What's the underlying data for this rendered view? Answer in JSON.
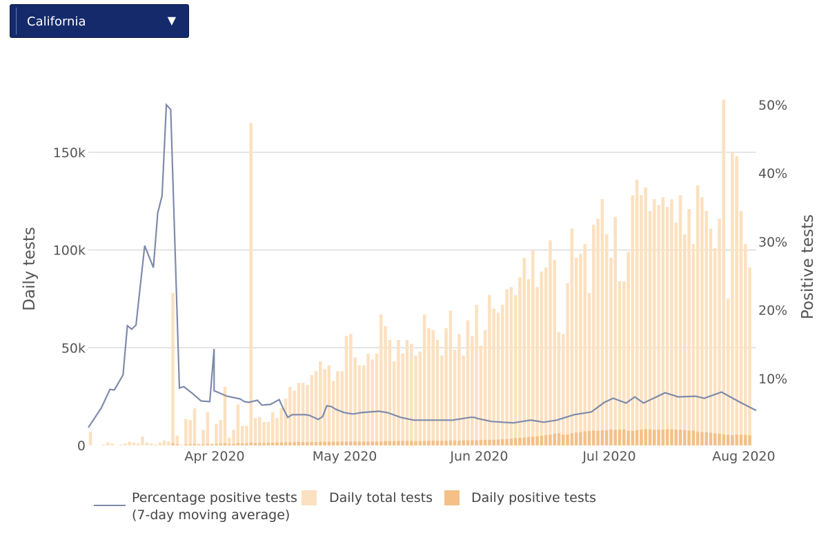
{
  "selector": {
    "value": "California",
    "caret": "▼"
  },
  "colors": {
    "line": "#7d8aab",
    "total_bar": "#fce1c0",
    "positive_bar": "#f4c088",
    "grid": "#cccccc",
    "axis_text": "#555555"
  },
  "legend": {
    "line_label_1": "Percentage positive tests",
    "line_label_2": "(7-day moving average)",
    "total_label": "Daily total tests",
    "positive_label": "Daily positive tests"
  },
  "chart_data": {
    "type": "bar",
    "x_start_date": "2020-03-04",
    "x_end_date": "2020-08-05",
    "x_ticks": [
      "Apr 2020",
      "May 2020",
      "Jun 2020",
      "Jul 2020",
      "Aug 2020"
    ],
    "y_left": {
      "label": "Daily tests",
      "range": [
        0,
        175000
      ],
      "ticks": [
        0,
        50000,
        100000,
        150000
      ],
      "tick_labels": [
        "0",
        "50k",
        "100k",
        "150k"
      ]
    },
    "y_right": {
      "label": "Positive tests",
      "range": [
        0,
        0.5
      ],
      "ticks": [
        0.1,
        0.2,
        0.3,
        0.4,
        0.5
      ],
      "tick_labels": [
        "10%",
        "20%",
        "30%",
        "40%",
        "50%"
      ]
    },
    "grid": true,
    "legend_position": "bottom",
    "series": [
      {
        "name": "Daily total tests",
        "values": [
          7000,
          0,
          0,
          500,
          1500,
          1000,
          0,
          500,
          1000,
          2000,
          1500,
          1000,
          4500,
          1500,
          1000,
          500,
          1500,
          2500,
          2000,
          78000,
          5000,
          0,
          13500,
          13000,
          19000,
          1000,
          8000,
          17000,
          1000,
          11000,
          13000,
          30000,
          4000,
          8000,
          21000,
          10000,
          10000,
          165000,
          14000,
          14500,
          12000,
          12000,
          17000,
          14000,
          19000,
          24000,
          30000,
          28000,
          32000,
          32000,
          31000,
          36000,
          38000,
          43000,
          39000,
          41000,
          33000,
          38000,
          38000,
          56000,
          57000,
          45000,
          41000,
          41000,
          47000,
          44000,
          47000,
          67000,
          61000,
          54000,
          43000,
          54000,
          47000,
          54000,
          52000,
          46000,
          48000,
          67000,
          60000,
          59000,
          54000,
          46000,
          60000,
          69000,
          49000,
          57000,
          46000,
          64000,
          56000,
          72000,
          51000,
          59000,
          77000,
          70000,
          68000,
          72000,
          80000,
          81000,
          77000,
          86000,
          96000,
          85000,
          100000,
          81000,
          89000,
          91000,
          105000,
          95000,
          58000,
          57000,
          83000,
          111000,
          96000,
          98000,
          103000,
          78000,
          113000,
          116000,
          126000,
          108000,
          96000,
          117000,
          84000,
          84000,
          99000,
          128000,
          136000,
          128000,
          132000,
          120000,
          126000,
          123000,
          127000,
          122000,
          126000,
          114000,
          128000,
          108000,
          121000,
          103000,
          133000,
          127000,
          120000,
          111000,
          101000,
          116000,
          177000,
          75000,
          150000,
          148000,
          120000,
          103000,
          91000
        ],
        "start_date": "2020-03-04"
      },
      {
        "name": "Daily positive tests",
        "values": [
          0,
          0,
          0,
          0,
          0,
          0,
          0,
          0,
          0,
          0,
          0,
          0,
          0,
          0,
          0,
          0,
          0,
          0,
          0,
          1000,
          500,
          200,
          500,
          600,
          800,
          300,
          500,
          800,
          500,
          700,
          900,
          1200,
          600,
          800,
          1300,
          1000,
          1000,
          1500,
          1200,
          1200,
          1200,
          1300,
          1400,
          1500,
          1500,
          1600,
          1600,
          1700,
          1800,
          1700,
          1700,
          1800,
          1800,
          1900,
          1900,
          1900,
          1900,
          1900,
          1900,
          2000,
          2000,
          2000,
          2000,
          2000,
          2000,
          2000,
          2000,
          2000,
          2200,
          2200,
          2200,
          2300,
          2300,
          2300,
          2300,
          2200,
          2200,
          2300,
          2400,
          2400,
          2400,
          2400,
          2400,
          2500,
          2500,
          2400,
          2600,
          2600,
          2700,
          2600,
          2700,
          2900,
          2800,
          2900,
          3000,
          3200,
          3300,
          3500,
          3700,
          3900,
          4000,
          4300,
          4500,
          4700,
          5000,
          5300,
          5500,
          6000,
          6200,
          5400,
          5500,
          6200,
          6600,
          6800,
          7200,
          7400,
          7600,
          7500,
          7700,
          7800,
          8200,
          8000,
          8100,
          8200,
          7500,
          7400,
          7800,
          8100,
          8400,
          8200,
          8000,
          8100,
          8000,
          8200,
          8300,
          8100,
          8000,
          7800,
          7600,
          7600,
          7000,
          6800,
          6700,
          6500,
          6200,
          6000,
          5600,
          5400,
          5300,
          5600,
          5500,
          5400,
          5200
        ],
        "start_date": "2020-03-04"
      },
      {
        "name": "Percentage positive tests",
        "dates": [
          "2020-03-04",
          "2020-03-07",
          "2020-03-09",
          "2020-03-10",
          "2020-03-12",
          "2020-03-13",
          "2020-03-14",
          "2020-03-15",
          "2020-03-17",
          "2020-03-19",
          "2020-03-20",
          "2020-03-21",
          "2020-03-22",
          "2020-03-23",
          "2020-03-25",
          "2020-03-26",
          "2020-03-28",
          "2020-03-30",
          "2020-04-01",
          "2020-04-02",
          "2020-04-02",
          "2020-04-05",
          "2020-04-08",
          "2020-04-09",
          "2020-04-10",
          "2020-04-12",
          "2020-04-13",
          "2020-04-15",
          "2020-04-17",
          "2020-04-18",
          "2020-04-19",
          "2020-04-20",
          "2020-04-23",
          "2020-04-24",
          "2020-04-26",
          "2020-04-27",
          "2020-04-28",
          "2020-04-29",
          "2020-04-30",
          "2020-05-02",
          "2020-05-04",
          "2020-05-06",
          "2020-05-10",
          "2020-05-12",
          "2020-05-15",
          "2020-05-18",
          "2020-05-22",
          "2020-05-27",
          "2020-05-31",
          "2020-06-01",
          "2020-06-02",
          "2020-06-05",
          "2020-06-10",
          "2020-06-14",
          "2020-06-17",
          "2020-06-20",
          "2020-06-24",
          "2020-06-28",
          "2020-07-01",
          "2020-07-03",
          "2020-07-06",
          "2020-07-08",
          "2020-07-10",
          "2020-07-15",
          "2020-07-18",
          "2020-07-22",
          "2020-07-24",
          "2020-07-28",
          "2020-08-01",
          "2020-08-05"
        ],
        "values": [
          0.026,
          0.055,
          0.082,
          0.081,
          0.103,
          0.175,
          0.17,
          0.176,
          0.292,
          0.26,
          0.34,
          0.365,
          0.498,
          0.491,
          0.084,
          0.086,
          0.076,
          0.065,
          0.064,
          0.141,
          0.08,
          0.072,
          0.068,
          0.064,
          0.063,
          0.066,
          0.059,
          0.06,
          0.067,
          0.053,
          0.041,
          0.045,
          0.045,
          0.044,
          0.038,
          0.042,
          0.058,
          0.057,
          0.053,
          0.048,
          0.046,
          0.048,
          0.05,
          0.048,
          0.041,
          0.037,
          0.037,
          0.037,
          0.041,
          0.041,
          0.039,
          0.035,
          0.033,
          0.037,
          0.034,
          0.037,
          0.045,
          0.049,
          0.063,
          0.069,
          0.062,
          0.071,
          0.062,
          0.077,
          0.071,
          0.072,
          0.069,
          0.078,
          0.064,
          0.051
        ],
        "y_axis": "right"
      }
    ]
  }
}
